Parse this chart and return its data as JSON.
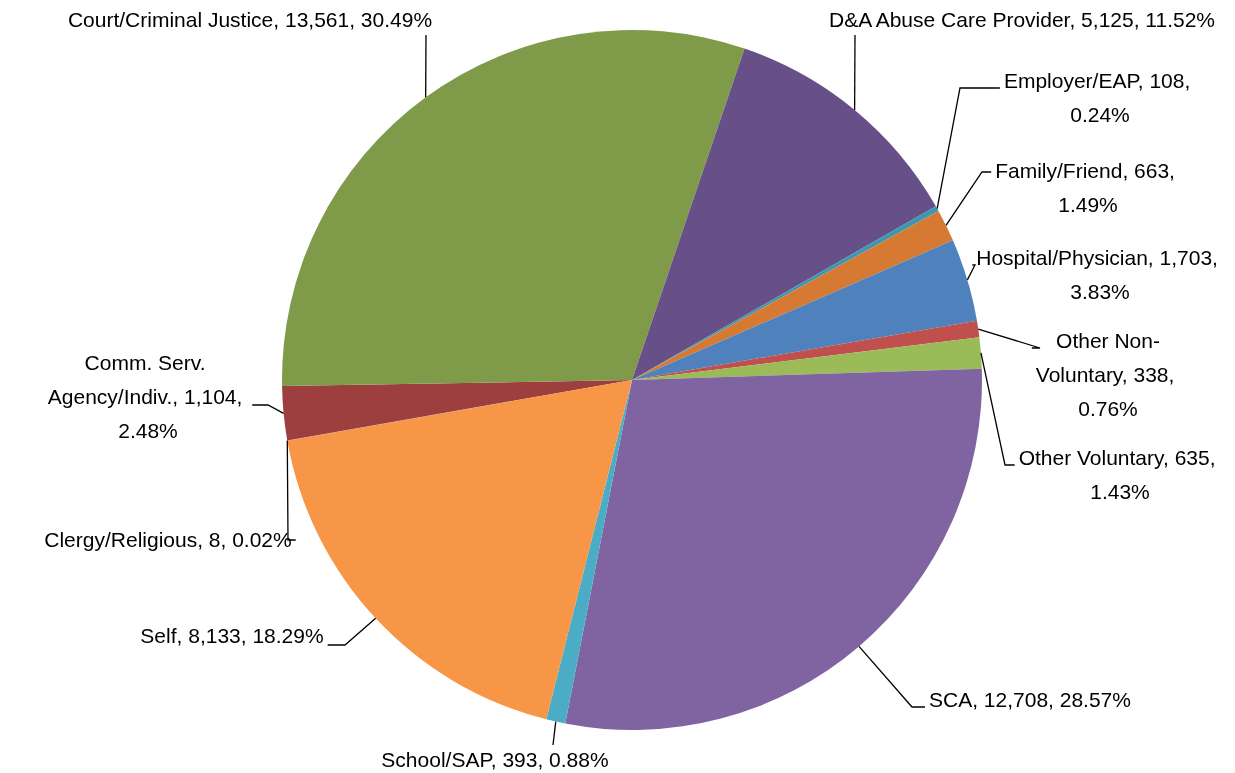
{
  "chart_data": {
    "type": "pie",
    "categories": [
      "Clergy/Religious",
      "Comm. Serv. Agency/Indiv.",
      "Court/Criminal Justice",
      "D&A Abuse Care Provider",
      "Employer/EAP",
      "Family/Friend",
      "Hospital/Physician",
      "Other Non-Voluntary",
      "Other Voluntary",
      "SCA",
      "School/SAP",
      "Self"
    ],
    "values": [
      8,
      1104,
      13561,
      5125,
      108,
      663,
      1703,
      338,
      635,
      12708,
      393,
      8133
    ],
    "value_labels": [
      "8, 0.02%",
      "1,104, 2.48%",
      "13,561, 30.49%",
      "5,125, 11.52%",
      "108, 0.24%",
      "663, 1.49%",
      "1,703, 3.83%",
      "338, 0.76%",
      "635, 1.43%",
      "12,708, 28.57%",
      "393, 0.88%",
      "8,133, 18.29%"
    ],
    "colors": [
      "#3a6aa3",
      "#9c3f3e",
      "#7f9b4a",
      "#674f88",
      "#3c98b0",
      "#d67a33",
      "#4f81bd",
      "#c0504d",
      "#9bbb59",
      "#8064a2",
      "#4bacc6",
      "#f79646"
    ],
    "legend": false
  }
}
